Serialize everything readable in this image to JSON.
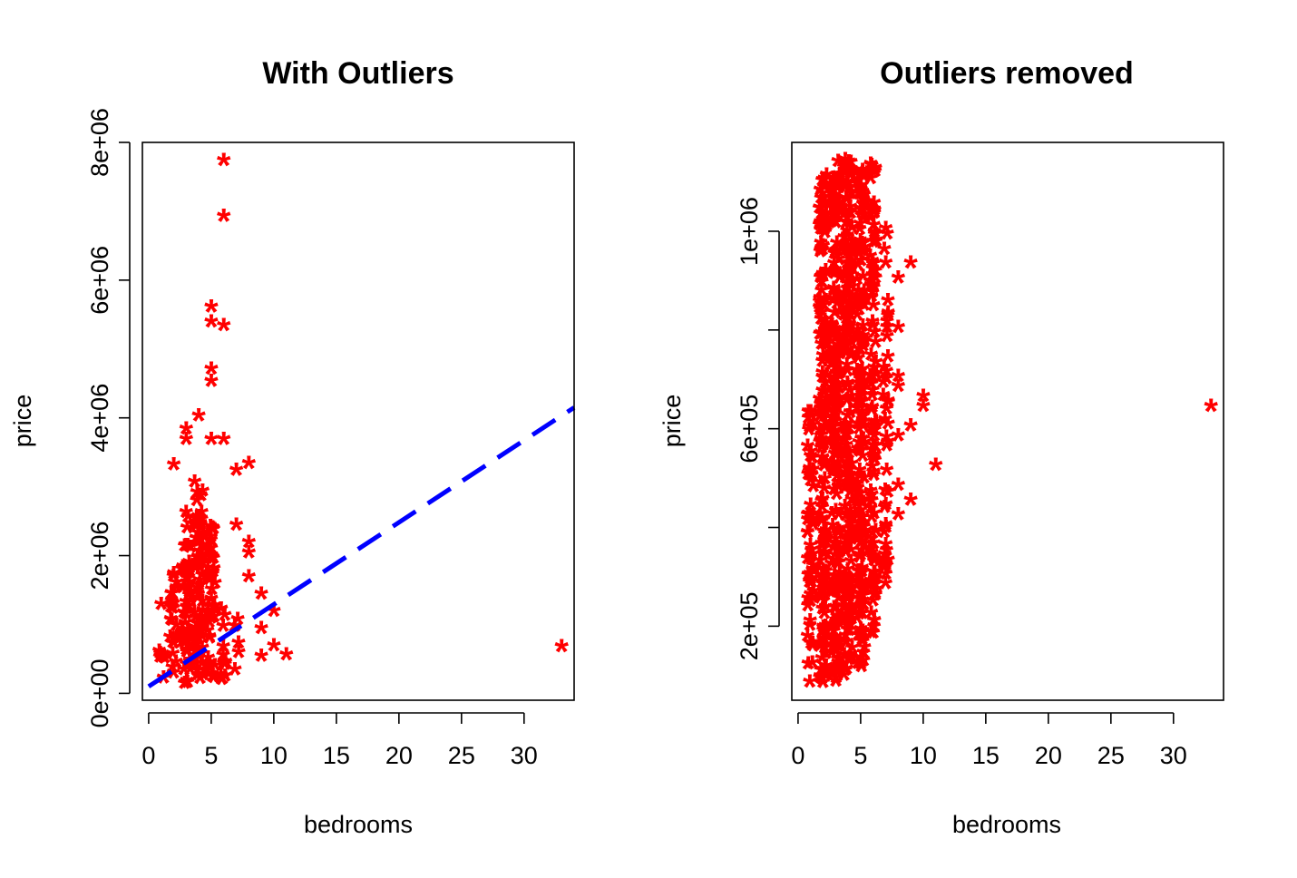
{
  "chart_data": [
    {
      "type": "scatter",
      "title": "With Outliers",
      "xlabel": "bedrooms",
      "ylabel": "price",
      "xlim": [
        -0.5,
        34.0
      ],
      "ylim": [
        -100000,
        8000000
      ],
      "xticks": [
        0,
        5,
        10,
        15,
        20,
        25,
        30
      ],
      "xtick_labels": [
        "0",
        "5",
        "10",
        "15",
        "20",
        "25",
        "30"
      ],
      "yticks": [
        0,
        2000000,
        4000000,
        6000000,
        8000000
      ],
      "ytick_labels": [
        "0e+00",
        "2e+06",
        "4e+06",
        "6e+06",
        "8e+06"
      ],
      "marker": "*",
      "color": "#ff0000",
      "trend_line": {
        "color": "#0000ff",
        "style": "dashed",
        "x": [
          0,
          34
        ],
        "y": [
          100000,
          4150000
        ]
      },
      "clusters": [
        {
          "x": 1,
          "width": 0.5,
          "ymin": 75000,
          "ymax": 700000,
          "density": 0.5
        },
        {
          "x": 2,
          "width": 0.6,
          "ymin": 78000,
          "ymax": 1700000,
          "density": 0.6
        },
        {
          "x": 3,
          "width": 0.7,
          "ymin": 82000,
          "ymax": 2600000,
          "density": 0.8
        },
        {
          "x": 4,
          "width": 0.7,
          "ymin": 100000,
          "ymax": 3100000,
          "density": 1.0
        },
        {
          "x": 5,
          "width": 0.6,
          "ymin": 130000,
          "ymax": 2400000,
          "density": 0.7
        },
        {
          "x": 6,
          "width": 0.5,
          "ymin": 150000,
          "ymax": 1300000,
          "density": 0.45
        },
        {
          "x": 7,
          "width": 0.4,
          "ymin": 250000,
          "ymax": 1100000,
          "density": 0.25
        }
      ],
      "points": [
        [
          6,
          7700000
        ],
        [
          6,
          6890000
        ],
        [
          5,
          5570000
        ],
        [
          5,
          5350000
        ],
        [
          6,
          5300000
        ],
        [
          5,
          4670000
        ],
        [
          5,
          4490000
        ],
        [
          4,
          3990000
        ],
        [
          3,
          3800000
        ],
        [
          5,
          3650000
        ],
        [
          3,
          3650000
        ],
        [
          6,
          3650000
        ],
        [
          2,
          3280000
        ],
        [
          8,
          3300000
        ],
        [
          7,
          3200000
        ],
        [
          7,
          2400000
        ],
        [
          8,
          2150000
        ],
        [
          8,
          2000000
        ],
        [
          2,
          1700000
        ],
        [
          8,
          1650000
        ],
        [
          9,
          1400000
        ],
        [
          1,
          1250000
        ],
        [
          10,
          1150000
        ],
        [
          9,
          900000
        ],
        [
          10,
          650000
        ],
        [
          11,
          520000
        ],
        [
          9,
          500000
        ],
        [
          33,
          640000
        ]
      ]
    },
    {
      "type": "scatter",
      "title": "Outliers removed",
      "xlabel": "bedrooms",
      "ylabel": "price",
      "xlim": [
        -0.5,
        34.0
      ],
      "ylim": [
        50000,
        1180000
      ],
      "xticks": [
        0,
        5,
        10,
        15,
        20,
        25,
        30
      ],
      "xtick_labels": [
        "0",
        "5",
        "10",
        "15",
        "20",
        "25",
        "30"
      ],
      "yticks": [
        200000,
        400000,
        600000,
        800000,
        1000000
      ],
      "ytick_labels": [
        "2e+05",
        "",
        "6e+05",
        "",
        "1e+06"
      ],
      "marker": "*",
      "color": "#ff0000",
      "clusters": [
        {
          "x": 1,
          "width": 0.5,
          "ymin": 78000,
          "ymax": 650000,
          "density": 0.6
        },
        {
          "x": 2,
          "width": 0.6,
          "ymin": 78000,
          "ymax": 1120000,
          "density": 0.9
        },
        {
          "x": 3,
          "width": 0.7,
          "ymin": 80000,
          "ymax": 1140000,
          "density": 1.0
        },
        {
          "x": 4,
          "width": 0.7,
          "ymin": 90000,
          "ymax": 1140000,
          "density": 1.0
        },
        {
          "x": 5,
          "width": 0.6,
          "ymin": 100000,
          "ymax": 1140000,
          "density": 0.9
        },
        {
          "x": 6,
          "width": 0.5,
          "ymin": 180000,
          "ymax": 1140000,
          "density": 0.6
        },
        {
          "x": 7,
          "width": 0.4,
          "ymin": 280000,
          "ymax": 1000000,
          "density": 0.3
        }
      ],
      "points": [
        [
          6,
          180000
        ],
        [
          7,
          1000000
        ],
        [
          9,
          930000
        ],
        [
          8,
          900000
        ],
        [
          7,
          930000
        ],
        [
          8,
          800000
        ],
        [
          8,
          700000
        ],
        [
          8,
          680000
        ],
        [
          10,
          660000
        ],
        [
          10,
          640000
        ],
        [
          9,
          600000
        ],
        [
          8,
          580000
        ],
        [
          11,
          520000
        ],
        [
          8,
          480000
        ],
        [
          9,
          450000
        ],
        [
          8,
          420000
        ],
        [
          7,
          400000
        ],
        [
          7,
          300000
        ],
        [
          7,
          360000
        ],
        [
          33,
          640000
        ]
      ]
    }
  ]
}
